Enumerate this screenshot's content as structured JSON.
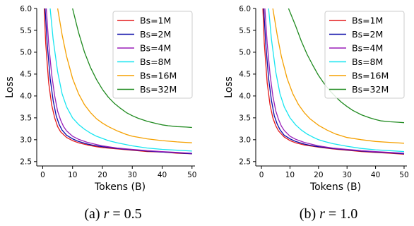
{
  "chart_data": [
    {
      "type": "line",
      "caption_prefix": "(a)",
      "caption_var": "r",
      "caption_rest": " = 0.5",
      "xlabel": "Tokens (B)",
      "ylabel": "Loss",
      "xlim": [
        -2,
        51
      ],
      "ylim": [
        2.4,
        6.0
      ],
      "xticks": [
        0,
        10,
        20,
        30,
        40,
        50
      ],
      "yticks": [
        2.5,
        3.0,
        3.5,
        4.0,
        4.5,
        5.0,
        5.5,
        6.0
      ],
      "ytick_labels": [
        "2.5",
        "3.0",
        "3.5",
        "4.0",
        "4.5",
        "5.0",
        "5.5",
        "6.0"
      ],
      "grid": false,
      "legend_position": "top-right",
      "series": [
        {
          "name": "Bs=1M",
          "color": "#e31a1c",
          "x": [
            0.5,
            1,
            2,
            3,
            4,
            5,
            6,
            8,
            10,
            12,
            15,
            18,
            20,
            25,
            30,
            35,
            40,
            45,
            50
          ],
          "y": [
            6.0,
            5.2,
            4.3,
            3.8,
            3.5,
            3.3,
            3.18,
            3.05,
            2.98,
            2.93,
            2.88,
            2.84,
            2.82,
            2.79,
            2.76,
            2.73,
            2.72,
            2.69,
            2.68
          ]
        },
        {
          "name": "Bs=2M",
          "color": "#0a0aa8",
          "x": [
            0.8,
            1.5,
            2.5,
            3.5,
            4.5,
            5.5,
            6.5,
            8,
            10,
            12,
            15,
            18,
            20,
            25,
            30,
            35,
            40,
            45,
            50
          ],
          "y": [
            6.0,
            5.2,
            4.4,
            3.9,
            3.55,
            3.35,
            3.22,
            3.1,
            3.02,
            2.96,
            2.9,
            2.86,
            2.84,
            2.8,
            2.77,
            2.74,
            2.72,
            2.7,
            2.68
          ]
        },
        {
          "name": "Bs=4M",
          "color": "#9a1fb8",
          "x": [
            1.2,
            2,
            3,
            4,
            5,
            6,
            7,
            8,
            10,
            12,
            15,
            18,
            20,
            25,
            30,
            35,
            40,
            45,
            50
          ],
          "y": [
            6.0,
            5.2,
            4.5,
            4.0,
            3.65,
            3.45,
            3.3,
            3.2,
            3.08,
            3.01,
            2.94,
            2.89,
            2.86,
            2.81,
            2.78,
            2.75,
            2.73,
            2.71,
            2.69
          ]
        },
        {
          "name": "Bs=8M",
          "color": "#17e5f0",
          "x": [
            2.5,
            3.5,
            5,
            6.5,
            8,
            10,
            12,
            14,
            16,
            18,
            20,
            22,
            25,
            30,
            35,
            40,
            45,
            50
          ],
          "y": [
            6.0,
            5.3,
            4.55,
            4.05,
            3.75,
            3.5,
            3.35,
            3.24,
            3.15,
            3.08,
            3.03,
            2.98,
            2.93,
            2.86,
            2.81,
            2.78,
            2.76,
            2.74
          ]
        },
        {
          "name": "Bs=16M",
          "color": "#f5a000",
          "x": [
            5,
            6.5,
            8,
            10,
            12,
            14,
            16,
            18,
            20,
            22,
            25,
            28,
            30,
            35,
            40,
            45,
            50
          ],
          "y": [
            6.0,
            5.4,
            4.9,
            4.4,
            4.05,
            3.8,
            3.62,
            3.48,
            3.38,
            3.3,
            3.2,
            3.12,
            3.08,
            3.02,
            2.98,
            2.95,
            2.93
          ]
        },
        {
          "name": "Bs=32M",
          "color": "#1f8a1f",
          "x": [
            10,
            12,
            14,
            16,
            18,
            20,
            22,
            24,
            26,
            28,
            30,
            32,
            35,
            38,
            40,
            42,
            45,
            48,
            50
          ],
          "y": [
            6.0,
            5.45,
            5.0,
            4.65,
            4.38,
            4.15,
            3.97,
            3.83,
            3.72,
            3.62,
            3.55,
            3.49,
            3.42,
            3.37,
            3.34,
            3.32,
            3.3,
            3.29,
            3.28
          ]
        }
      ]
    },
    {
      "type": "line",
      "caption_prefix": "(b)",
      "caption_var": "r",
      "caption_rest": " = 1.0",
      "xlabel": "Tokens (B)",
      "ylabel": "Loss",
      "xlim": [
        -2,
        51
      ],
      "ylim": [
        2.4,
        6.0
      ],
      "xticks": [
        0,
        10,
        20,
        30,
        40,
        50
      ],
      "yticks": [
        2.5,
        3.0,
        3.5,
        4.0,
        4.5,
        5.0,
        5.5,
        6.0
      ],
      "ytick_labels": [
        "2.5",
        "3.0",
        "3.5",
        "4.0",
        "4.5",
        "5.0",
        "5.5",
        "6.0"
      ],
      "grid": false,
      "legend_position": "top-right",
      "series": [
        {
          "name": "Bs=1M",
          "color": "#e31a1c",
          "x": [
            0.5,
            1,
            2,
            3,
            4,
            5,
            6,
            8,
            10,
            12,
            15,
            18,
            20,
            25,
            30,
            35,
            40,
            45,
            50
          ],
          "y": [
            6.0,
            5.2,
            4.3,
            3.8,
            3.5,
            3.32,
            3.2,
            3.06,
            2.98,
            2.93,
            2.88,
            2.85,
            2.83,
            2.79,
            2.76,
            2.73,
            2.71,
            2.69,
            2.67
          ]
        },
        {
          "name": "Bs=2M",
          "color": "#0a0aa8",
          "x": [
            0.8,
            1.5,
            2.5,
            3.5,
            4.5,
            5.5,
            6.5,
            8,
            10,
            12,
            15,
            18,
            20,
            25,
            30,
            35,
            40,
            45,
            50
          ],
          "y": [
            6.0,
            5.2,
            4.4,
            3.9,
            3.55,
            3.36,
            3.23,
            3.1,
            3.02,
            2.96,
            2.9,
            2.86,
            2.84,
            2.8,
            2.77,
            2.74,
            2.72,
            2.7,
            2.68
          ]
        },
        {
          "name": "Bs=4M",
          "color": "#9a1fb8",
          "x": [
            1.2,
            2,
            3,
            4,
            5,
            6,
            7,
            8,
            10,
            12,
            15,
            18,
            20,
            25,
            30,
            35,
            40,
            45,
            50
          ],
          "y": [
            6.0,
            5.2,
            4.5,
            4.0,
            3.66,
            3.46,
            3.31,
            3.21,
            3.08,
            3.01,
            2.94,
            2.89,
            2.86,
            2.81,
            2.78,
            2.75,
            2.73,
            2.71,
            2.69
          ]
        },
        {
          "name": "Bs=8M",
          "color": "#17e5f0",
          "x": [
            2.5,
            3.5,
            5,
            6.5,
            8,
            10,
            12,
            14,
            16,
            18,
            20,
            22,
            25,
            30,
            35,
            40,
            45,
            50
          ],
          "y": [
            6.0,
            5.3,
            4.55,
            4.05,
            3.75,
            3.5,
            3.34,
            3.22,
            3.13,
            3.06,
            3.0,
            2.96,
            2.91,
            2.85,
            2.8,
            2.77,
            2.75,
            2.73
          ]
        },
        {
          "name": "Bs=16M",
          "color": "#f5a000",
          "x": [
            4,
            5.5,
            7,
            9,
            11,
            13,
            15,
            17,
            20,
            23,
            26,
            30,
            35,
            40,
            45,
            50
          ],
          "y": [
            6.0,
            5.4,
            4.9,
            4.4,
            4.05,
            3.8,
            3.62,
            3.48,
            3.33,
            3.22,
            3.13,
            3.05,
            3.0,
            2.96,
            2.94,
            2.92
          ]
        },
        {
          "name": "Bs=32M",
          "color": "#1f8a1f",
          "x": [
            9.5,
            12,
            14,
            16,
            18,
            20,
            22,
            24,
            26,
            28,
            30,
            32,
            35,
            38,
            40,
            42,
            45,
            48,
            50
          ],
          "y": [
            6.0,
            5.6,
            5.25,
            4.95,
            4.7,
            4.47,
            4.28,
            4.12,
            3.98,
            3.86,
            3.76,
            3.67,
            3.57,
            3.5,
            3.46,
            3.43,
            3.41,
            3.4,
            3.39
          ]
        }
      ]
    }
  ]
}
